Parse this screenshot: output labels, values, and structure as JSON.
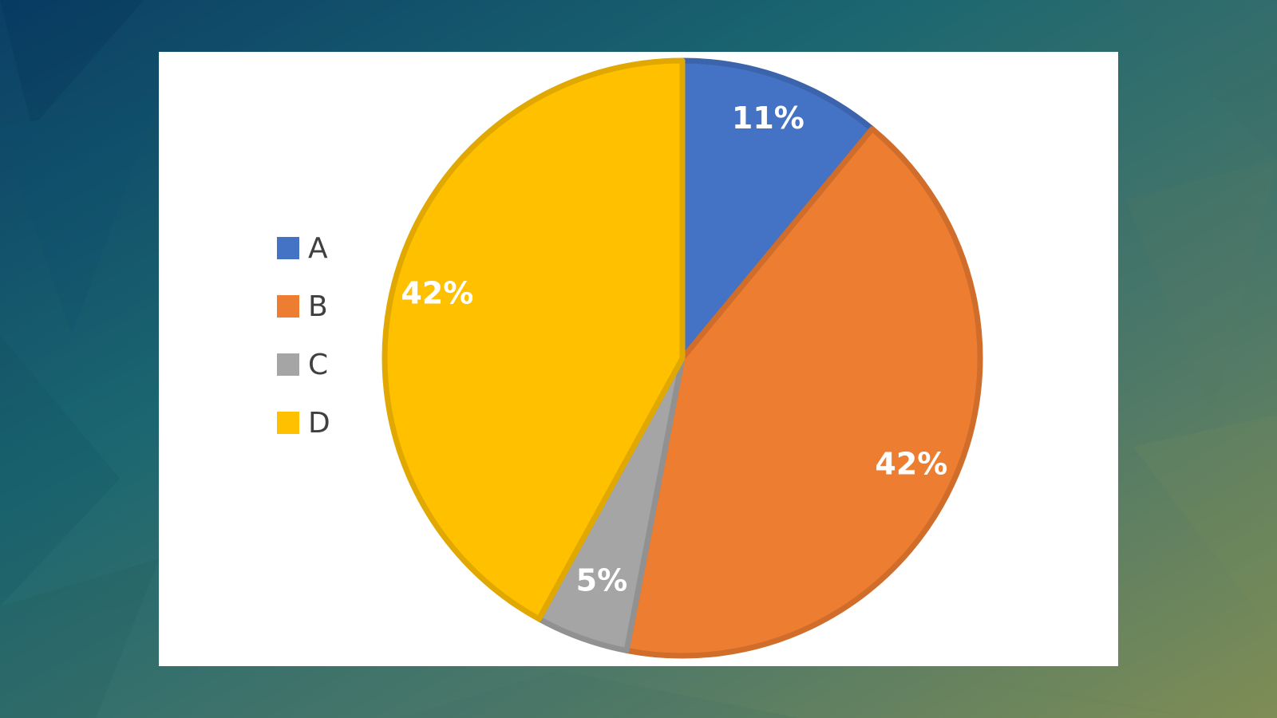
{
  "chart_data": {
    "type": "pie",
    "categories": [
      "A",
      "B",
      "C",
      "D"
    ],
    "values": [
      11,
      42,
      5,
      42
    ],
    "value_labels": [
      "11%",
      "42%",
      "5%",
      "42%"
    ],
    "colors": [
      "#4472c4",
      "#ed7d31",
      "#a5a5a5",
      "#ffc000"
    ],
    "legend": "left"
  }
}
